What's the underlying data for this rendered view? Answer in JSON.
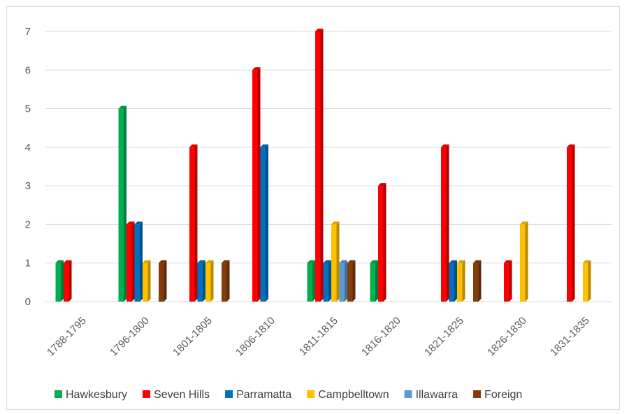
{
  "chart_data": {
    "type": "bar",
    "title": "",
    "xlabel": "",
    "ylabel": "",
    "ylim": [
      0,
      7
    ],
    "y_ticks": [
      0,
      1,
      2,
      3,
      4,
      5,
      6,
      7
    ],
    "grid": true,
    "legend_position": "bottom",
    "categories": [
      "1788-1795",
      "1796-1800",
      "1801-1805",
      "1806-1810",
      "1811-1815",
      "1816-1820",
      "1821-1825",
      "1826-1830",
      "1831-1835"
    ],
    "series": [
      {
        "name": "Hawkesbury",
        "color": "#00B050",
        "values": [
          1,
          5,
          0,
          0,
          1,
          1,
          0,
          0,
          0
        ]
      },
      {
        "name": "Seven Hills",
        "color": "#FF0000",
        "values": [
          1,
          2,
          4,
          6,
          7,
          3,
          4,
          1,
          4
        ]
      },
      {
        "name": "Parramatta",
        "color": "#0070C0",
        "values": [
          0,
          2,
          1,
          4,
          1,
          0,
          1,
          0,
          0
        ]
      },
      {
        "name": "Campbelltown",
        "color": "#FFC000",
        "values": [
          0,
          1,
          1,
          0,
          2,
          0,
          1,
          2,
          1
        ]
      },
      {
        "name": "Illawarra",
        "color": "#5B9BD5",
        "values": [
          0,
          0,
          0,
          0,
          1,
          0,
          0,
          0,
          0
        ]
      },
      {
        "name": "Foreign",
        "color": "#843C0C",
        "values": [
          0,
          1,
          1,
          0,
          1,
          0,
          1,
          0,
          0
        ]
      }
    ]
  }
}
